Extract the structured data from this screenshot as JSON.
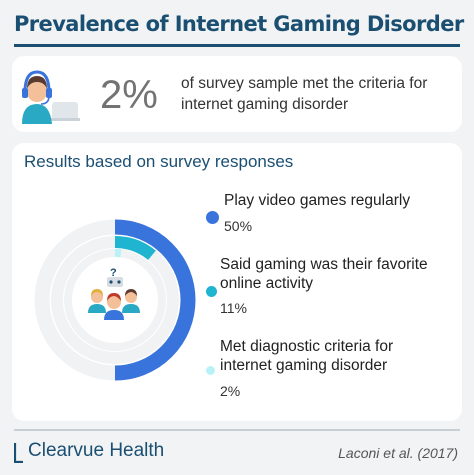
{
  "title": "Prevalence of Internet Gaming Disorder",
  "headline": {
    "value": "2%",
    "text": "of survey sample met the criteria for internet gaming disorder"
  },
  "section_title": "Results based on survey responses",
  "chart_data": {
    "type": "radial-bar",
    "series": [
      {
        "label": "Play video games regularly",
        "value": 50,
        "display": "50%",
        "color": "#3874dc"
      },
      {
        "label": "Said gaming was their favorite online activity",
        "value": 11,
        "display": "11%",
        "color": "#1fb4cf"
      },
      {
        "label": "Met diagnostic criteria for internet gaming disorder",
        "value": 2,
        "display": "2%",
        "color": "#b8f2f7"
      }
    ],
    "max": 100,
    "track_color": "#f1f2f4"
  },
  "footer": {
    "brand": "Clearvue Health",
    "citation": "Laconi et al. (2017)"
  },
  "colors": {
    "title": "#1b4f72",
    "background": "#f2f3f4",
    "card": "#ffffff"
  },
  "icons": [
    "gamer-headset-icon",
    "gamer-group-icon",
    "gamepad-icon",
    "question-mark-icon"
  ]
}
